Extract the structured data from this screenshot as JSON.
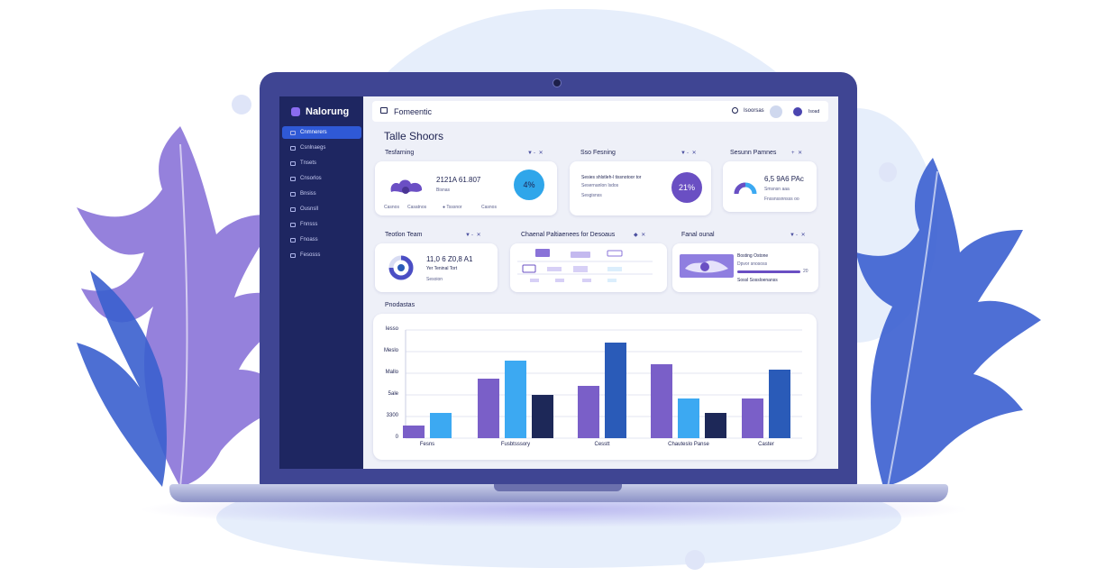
{
  "app": {
    "brand": "Nalorung"
  },
  "sidebar": {
    "items": [
      {
        "label": "Cnmnerers",
        "active": true
      },
      {
        "label": "Csnlnaegs",
        "active": false
      },
      {
        "label": "Tnsets",
        "active": false
      },
      {
        "label": "Cnsorlos",
        "active": false
      },
      {
        "label": "Bnsiss",
        "active": false
      },
      {
        "label": "Ousnsll",
        "active": false
      },
      {
        "label": "Fnnsss",
        "active": false
      },
      {
        "label": "Fnoass",
        "active": false
      },
      {
        "label": "Fesosss",
        "active": false
      }
    ]
  },
  "topbar": {
    "title": "Fomeentic",
    "search_label": "Isoorsas",
    "user_name": "Isoad"
  },
  "page": {
    "title": "Talle Shoors"
  },
  "sections": {
    "row1": [
      {
        "title": "Tesfarning",
        "tools": "▼- ✕"
      },
      {
        "title": "Sso Fesning",
        "tools": "▼- ✕"
      },
      {
        "title": "Sesunn Pamnes",
        "tools": "+ ✕"
      }
    ],
    "row2": [
      {
        "title": "Teotlon Team",
        "tools": "▼- ✕"
      },
      {
        "title": "Chaenal Paltiaenees for Desoaus",
        "tools": "◆ ✕"
      },
      {
        "title": "Fanal ounal",
        "tools": "▼- ✕"
      }
    ],
    "chart_section": "Pnodastas"
  },
  "cards": {
    "c1": {
      "value": "2121A 61.807",
      "sub": "Bisnas",
      "badge": "4%",
      "footer": [
        "Casnos",
        "Casatnos",
        "● Tsssnor",
        "Casnos"
      ]
    },
    "c2": {
      "line1": "Sesies shlstleh-l tissnotoor tor",
      "line2": "Sesernanlon lsdos",
      "line3": "Sesgisnss",
      "badge": "21%"
    },
    "c3": {
      "value": "6,5 9A6 PAc",
      "sub": "Smsnsn aaa",
      "foot": "Fnssnssnnsss oo"
    },
    "c4": {
      "value": "11,0 6 Z0,8 A1",
      "sub": "Yer Teninal Tort",
      "foot": "Sesoion"
    },
    "c6": {
      "line1": "Bosting Ostone",
      "line2": "Dpvor snososs",
      "val": "20",
      "foot": "Sossl Sossloenanss"
    }
  },
  "colors": {
    "violet": "#7a5fc8",
    "sky": "#3ca9f2",
    "navy": "#1d2858",
    "blue": "#2a5bb8",
    "accent": "#2f59d6"
  },
  "chart_data": {
    "type": "bar",
    "y_ticks": [
      "0",
      "3300",
      "5ale",
      "Mallo",
      "Meslo",
      "Iesso"
    ],
    "ylim": [
      0,
      6
    ],
    "categories": [
      "Fesns",
      "Fusbtsssory",
      "Cesstt",
      "Chauteslo Panse",
      "Caster"
    ],
    "series": [
      {
        "values": [
          0.7,
          3.3,
          2.9,
          4.1,
          2.2
        ]
      },
      {
        "values": [
          1.4,
          4.3,
          null,
          2.2,
          null
        ]
      },
      {
        "values": [
          null,
          2.4,
          null,
          1.4,
          null
        ]
      },
      {
        "values": [
          null,
          null,
          5.3,
          null,
          3.8
        ]
      }
    ]
  }
}
